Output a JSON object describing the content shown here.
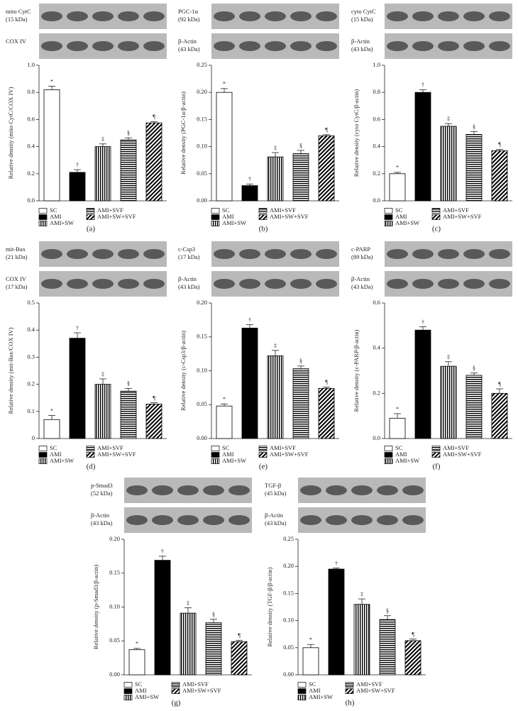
{
  "chart_data": [
    {
      "type": "bar",
      "panel": "(a)",
      "ylabel": "Relative density (mito CytC/COX IV)",
      "blots": [
        {
          "name": "mito CytC",
          "size": "(15 kDa)"
        },
        {
          "name": "COX IV"
        }
      ],
      "categories": [
        "SC",
        "AMI",
        "AMI+SW",
        "AMI+SVF",
        "AMI+SW+SVF"
      ],
      "fills": [
        "#ffffff",
        "#000000",
        "vertical-stripes",
        "horizontal-stripes",
        "diagonal-stripes"
      ],
      "values": [
        0.82,
        0.21,
        0.4,
        0.45,
        0.575
      ],
      "errors": [
        0.025,
        0.02,
        0.02,
        0.015,
        0.01
      ],
      "annotations": [
        "*",
        "†",
        "‡",
        "§",
        "¶"
      ],
      "ylim": [
        0,
        1.0
      ],
      "yticks": [
        {
          "value": 0,
          "label": "0.0"
        },
        {
          "value": 0.2,
          "label": "0.2"
        },
        {
          "value": 0.4,
          "label": "0.4"
        },
        {
          "value": 0.6,
          "label": "0.6"
        },
        {
          "value": 0.8,
          "label": "0.8"
        },
        {
          "value": 1.0,
          "label": "1.0"
        }
      ]
    },
    {
      "type": "bar",
      "panel": "(b)",
      "ylabel": "Relative density (PGC-1α/β-actin)",
      "blots": [
        {
          "name": "PGC-1α",
          "size": "(92 kDa)"
        },
        {
          "name": "β-Actin",
          "size": "(43 kDa)"
        }
      ],
      "categories": [
        "SC",
        "AMI",
        "AMI+SW",
        "AMI+SVF",
        "AMI+SW+SVF"
      ],
      "fills": [
        "#ffffff",
        "#000000",
        "vertical-stripes",
        "horizontal-stripes",
        "diagonal-stripes"
      ],
      "values": [
        0.2,
        0.028,
        0.081,
        0.087,
        0.12
      ],
      "errors": [
        0.007,
        0.003,
        0.008,
        0.006,
        0.002
      ],
      "annotations": [
        "*",
        "†",
        "‡",
        "§",
        "¶"
      ],
      "ylim": [
        0,
        0.25
      ],
      "yticks": [
        {
          "value": 0,
          "label": "0.00"
        },
        0.05,
        {
          "value": 0.1,
          "label": "0.10"
        },
        0.15,
        {
          "value": 0.2,
          "label": "0.20"
        },
        0.25
      ]
    },
    {
      "type": "bar",
      "panel": "(c)",
      "ylabel": "Relative density (cyto CytC/β-actin)",
      "blots": [
        {
          "name": "cyto CytC",
          "size": "(15 kDa)"
        },
        {
          "name": "β-Actin",
          "size": "(43 kDa)"
        }
      ],
      "categories": [
        "SC",
        "AMI",
        "AMI+SW",
        "AMI+SVF",
        "AMI+SW+SVF"
      ],
      "fills": [
        "#ffffff",
        "#000000",
        "vertical-stripes",
        "horizontal-stripes",
        "diagonal-stripes"
      ],
      "values": [
        0.2,
        0.8,
        0.55,
        0.49,
        0.37
      ],
      "errors": [
        0.01,
        0.02,
        0.02,
        0.02,
        0.01
      ],
      "annotations": [
        "*",
        "†",
        "‡",
        "§",
        "¶"
      ],
      "ylim": [
        0,
        1.0
      ],
      "yticks": [
        {
          "value": 0,
          "label": "0.0"
        },
        {
          "value": 0.2,
          "label": "0.2"
        },
        {
          "value": 0.4,
          "label": "0.4"
        },
        {
          "value": 0.6,
          "label": "0.6"
        },
        {
          "value": 0.8,
          "label": "0.8"
        },
        {
          "value": 1.0,
          "label": "1.0"
        }
      ]
    },
    {
      "type": "bar",
      "panel": "(d)",
      "ylabel": "Relative density (mit-Bax/COX IV)",
      "blots": [
        {
          "name": "mit-Bax",
          "size": "(21 kDa)"
        },
        {
          "name": "COX IV",
          "size": "(17 kDa)"
        }
      ],
      "categories": [
        "SC",
        "AMI",
        "AMI+SW",
        "AMI+SVF",
        "AMI+SW+SVF"
      ],
      "fills": [
        "#ffffff",
        "#000000",
        "vertical-stripes",
        "horizontal-stripes",
        "diagonal-stripes"
      ],
      "values": [
        0.07,
        0.37,
        0.2,
        0.175,
        0.127
      ],
      "errors": [
        0.015,
        0.02,
        0.02,
        0.01,
        0.005
      ],
      "annotations": [
        "*",
        "†",
        "‡",
        "§",
        "¶"
      ],
      "ylim": [
        0,
        0.5
      ],
      "yticks": [
        0,
        0.1,
        0.2,
        0.3,
        0.4,
        0.5
      ]
    },
    {
      "type": "bar",
      "panel": "(e)",
      "ylabel": "Relative density (c-Csp3/β-actin)",
      "blots": [
        {
          "name": "c-Csp3",
          "size": "(17 kDa)"
        },
        {
          "name": "β-Actin",
          "size": "(43 kDa)"
        }
      ],
      "categories": [
        "SC",
        "AMI",
        "AMI+SW",
        "AMI+SVF",
        "AMI+SW+SVF"
      ],
      "fills": [
        "#ffffff",
        "#000000",
        "vertical-stripes",
        "horizontal-stripes",
        "diagonal-stripes"
      ],
      "values": [
        0.048,
        0.163,
        0.122,
        0.103,
        0.074
      ],
      "errors": [
        0.003,
        0.005,
        0.008,
        0.004,
        0.002
      ],
      "annotations": [
        "*",
        "†",
        "‡",
        "§",
        "¶"
      ],
      "ylim": [
        0,
        0.2
      ],
      "yticks": [
        {
          "value": 0,
          "label": "0.00"
        },
        0.05,
        {
          "value": 0.1,
          "label": "0.10"
        },
        0.15,
        {
          "value": 0.2,
          "label": "0.20"
        }
      ]
    },
    {
      "type": "bar",
      "panel": "(f)",
      "ylabel": "Relative density (c-PARP/β-actin)",
      "blots": [
        {
          "name": "c-PARP",
          "size": "(89 kDa)"
        },
        {
          "name": "β-Actin",
          "size": "(43 kDa)"
        }
      ],
      "categories": [
        "SC",
        "AMI",
        "AMI+SW",
        "AMI+SVF",
        "AMI+SW+SVF"
      ],
      "fills": [
        "#ffffff",
        "#000000",
        "vertical-stripes",
        "horizontal-stripes",
        "diagonal-stripes"
      ],
      "values": [
        0.09,
        0.48,
        0.32,
        0.28,
        0.2
      ],
      "errors": [
        0.02,
        0.015,
        0.02,
        0.01,
        0.02
      ],
      "annotations": [
        "*",
        "†",
        "‡",
        "§",
        "¶"
      ],
      "ylim": [
        0,
        0.6
      ],
      "yticks": [
        {
          "value": 0,
          "label": "0.0"
        },
        {
          "value": 0.2,
          "label": "0.2"
        },
        {
          "value": 0.4,
          "label": "0.4"
        },
        {
          "value": 0.6,
          "label": "0.6"
        }
      ]
    },
    {
      "type": "bar",
      "panel": "(g)",
      "ylabel": "Relative density (p-Smad3/β-actin)",
      "blots": [
        {
          "name": "p-Smad3",
          "size": "(52 kDa)"
        },
        {
          "name": "β-Actin",
          "size": "(43 kDa)"
        }
      ],
      "categories": [
        "SC",
        "AMI",
        "AMI+SW",
        "AMI+SVF",
        "AMI+SW+SVF"
      ],
      "fills": [
        "#ffffff",
        "#000000",
        "vertical-stripes",
        "horizontal-stripes",
        "diagonal-stripes"
      ],
      "values": [
        0.037,
        0.169,
        0.091,
        0.077,
        0.049
      ],
      "errors": [
        0.002,
        0.006,
        0.008,
        0.005,
        0.002
      ],
      "annotations": [
        "*",
        "†",
        "‡",
        "§",
        "¶"
      ],
      "ylim": [
        0,
        0.2
      ],
      "yticks": [
        {
          "value": 0,
          "label": "0.00"
        },
        0.05,
        {
          "value": 0.1,
          "label": "0.10"
        },
        0.15,
        {
          "value": 0.2,
          "label": "0.20"
        }
      ]
    },
    {
      "type": "bar",
      "panel": "(h)",
      "ylabel": "Relative density (TGF-β/β-actin)",
      "blots": [
        {
          "name": "TGF-β",
          "size": "(45 kDa)"
        },
        {
          "name": "β-Actin",
          "size": "(43 kDa)"
        }
      ],
      "categories": [
        "SC",
        "AMI",
        "AMI+SW",
        "AMI+SVF",
        "AMI+SW+SVF"
      ],
      "fills": [
        "#ffffff",
        "#000000",
        "vertical-stripes",
        "horizontal-stripes",
        "diagonal-stripes"
      ],
      "values": [
        0.05,
        0.195,
        0.13,
        0.102,
        0.063
      ],
      "errors": [
        0.006,
        0.002,
        0.01,
        0.007,
        0.003
      ],
      "annotations": [
        "*",
        "†",
        "‡",
        "§",
        "¶"
      ],
      "ylim": [
        0,
        0.25
      ],
      "yticks": [
        {
          "value": 0,
          "label": "0.00"
        },
        0.05,
        {
          "value": 0.1,
          "label": "0.10"
        },
        0.15,
        {
          "value": 0.2,
          "label": "0.20"
        },
        0.25
      ]
    }
  ]
}
